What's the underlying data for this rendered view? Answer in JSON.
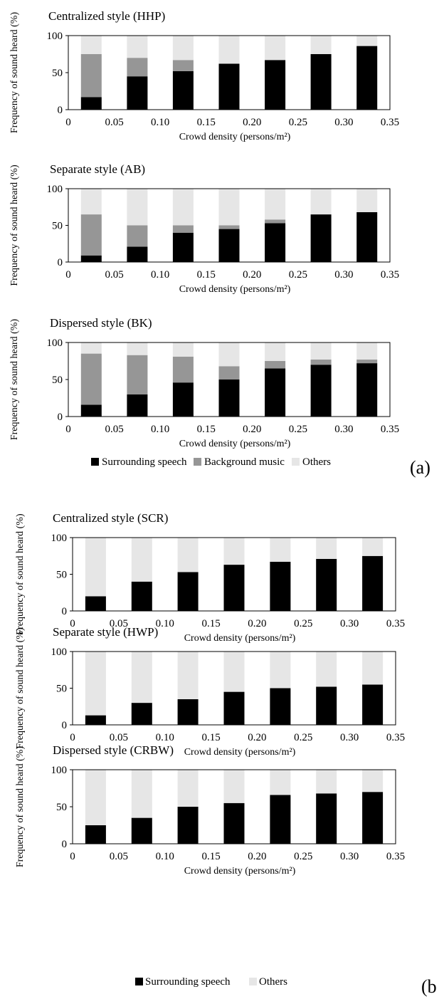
{
  "colors": {
    "speech": "#000000",
    "music": "#969696",
    "others": "#e6e6e6",
    "frame": "#000000"
  },
  "panel_labels": {
    "a": "(a)",
    "b": "(b"
  },
  "legend_a": {
    "items": [
      "Surrounding speech",
      "Background music",
      "Others"
    ]
  },
  "legend_b": {
    "items": [
      "Surrounding speech",
      "Others"
    ]
  },
  "chart_data": [
    {
      "type": "bar",
      "stacked": true,
      "title": "Centralized style  (HHP)",
      "xlabel": "Crowd density (persons/m²)",
      "ylabel": "Frequency of sound heard (%)",
      "xlim": [
        0,
        0.35
      ],
      "ylim": [
        0,
        100
      ],
      "xticks": [
        "0",
        "0.05",
        "0.10",
        "0.15",
        "0.20",
        "0.25",
        "0.30",
        "0.35"
      ],
      "yticks": [
        "0",
        "50",
        "100"
      ],
      "x": [
        0.025,
        0.075,
        0.125,
        0.175,
        0.225,
        0.275,
        0.325
      ],
      "series": [
        {
          "name": "Surrounding speech",
          "values": [
            17,
            45,
            52,
            62,
            67,
            75,
            86
          ]
        },
        {
          "name": "Background music",
          "values": [
            58,
            25,
            15,
            0,
            0,
            0,
            0
          ]
        },
        {
          "name": "Others",
          "values": [
            25,
            30,
            33,
            38,
            33,
            25,
            14
          ]
        }
      ]
    },
    {
      "type": "bar",
      "stacked": true,
      "title": "Separate style  (AB)",
      "xlabel": "Crowd density (persons/m²)",
      "ylabel": "Frequency of sound heard (%)",
      "xlim": [
        0,
        0.35
      ],
      "ylim": [
        0,
        100
      ],
      "xticks": [
        "0",
        "0.05",
        "0.10",
        "0.15",
        "0.20",
        "0.25",
        "0.30",
        "0.35"
      ],
      "yticks": [
        "0",
        "50",
        "100"
      ],
      "x": [
        0.025,
        0.075,
        0.125,
        0.175,
        0.225,
        0.275,
        0.325
      ],
      "series": [
        {
          "name": "Surrounding speech",
          "values": [
            9,
            21,
            40,
            45,
            53,
            65,
            68
          ]
        },
        {
          "name": "Background music",
          "values": [
            56,
            29,
            10,
            5,
            5,
            0,
            0
          ]
        },
        {
          "name": "Others",
          "values": [
            35,
            50,
            50,
            50,
            42,
            35,
            32
          ]
        }
      ]
    },
    {
      "type": "bar",
      "stacked": true,
      "title": "Dispersed style  (BK)",
      "xlabel": "Crowd density (persons/m²)",
      "ylabel": "Frequency of sound heard (%)",
      "xlim": [
        0,
        0.35
      ],
      "ylim": [
        0,
        100
      ],
      "xticks": [
        "0",
        "0.05",
        "0.10",
        "0.15",
        "0.20",
        "0.25",
        "0.30",
        "0.35"
      ],
      "yticks": [
        "0",
        "50",
        "100"
      ],
      "x": [
        0.025,
        0.075,
        0.125,
        0.175,
        0.225,
        0.275,
        0.325
      ],
      "series": [
        {
          "name": "Surrounding speech",
          "values": [
            16,
            30,
            46,
            50,
            65,
            70,
            72
          ]
        },
        {
          "name": "Background music",
          "values": [
            69,
            53,
            35,
            18,
            10,
            7,
            5
          ]
        },
        {
          "name": "Others",
          "values": [
            15,
            17,
            19,
            32,
            25,
            23,
            23
          ]
        }
      ]
    },
    {
      "type": "bar",
      "stacked": true,
      "title": "Centralized style  (SCR)",
      "xlabel": "Crowd density (persons/m²)",
      "ylabel": "Frequency of sound heard (%)",
      "xlim": [
        0,
        0.35
      ],
      "ylim": [
        0,
        100
      ],
      "xticks": [
        "0",
        "0.05",
        "0.10",
        "0.15",
        "0.20",
        "0.25",
        "0.30",
        "0.35"
      ],
      "yticks": [
        "0",
        "50",
        "100"
      ],
      "x": [
        0.025,
        0.075,
        0.125,
        0.175,
        0.225,
        0.275,
        0.325
      ],
      "series": [
        {
          "name": "Surrounding speech",
          "values": [
            20,
            40,
            53,
            63,
            67,
            71,
            75
          ]
        },
        {
          "name": "Others",
          "values": [
            80,
            60,
            47,
            37,
            33,
            29,
            25
          ]
        }
      ]
    },
    {
      "type": "bar",
      "stacked": true,
      "title": "Separate style  (HWP)",
      "xlabel": "Crowd density (persons/m²)",
      "ylabel": "Frequency of sound heard (%)",
      "xlim": [
        0,
        0.35
      ],
      "ylim": [
        0,
        100
      ],
      "xticks": [
        "0",
        "0.05",
        "0.10",
        "0.15",
        "0.20",
        "0.25",
        "0.30",
        "0.35"
      ],
      "yticks": [
        "0",
        "50",
        "100"
      ],
      "x": [
        0.025,
        0.075,
        0.125,
        0.175,
        0.225,
        0.275,
        0.325
      ],
      "series": [
        {
          "name": "Surrounding speech",
          "values": [
            13,
            30,
            35,
            45,
            50,
            52,
            55
          ]
        },
        {
          "name": "Others",
          "values": [
            87,
            70,
            65,
            55,
            50,
            48,
            45
          ]
        }
      ]
    },
    {
      "type": "bar",
      "stacked": true,
      "title": "Dispersed style  (CRBW)",
      "xlabel": "Crowd density (persons/m²)",
      "ylabel": "Frequency of sound heard (%)",
      "xlim": [
        0,
        0.35
      ],
      "ylim": [
        0,
        100
      ],
      "xticks": [
        "0",
        "0.05",
        "0.10",
        "0.15",
        "0.20",
        "0.25",
        "0.30",
        "0.35"
      ],
      "yticks": [
        "0",
        "50",
        "100"
      ],
      "x": [
        0.025,
        0.075,
        0.125,
        0.175,
        0.225,
        0.275,
        0.325
      ],
      "series": [
        {
          "name": "Surrounding speech",
          "values": [
            25,
            35,
            50,
            55,
            66,
            68,
            70
          ]
        },
        {
          "name": "Others",
          "values": [
            75,
            65,
            50,
            45,
            34,
            32,
            30
          ]
        }
      ]
    }
  ]
}
